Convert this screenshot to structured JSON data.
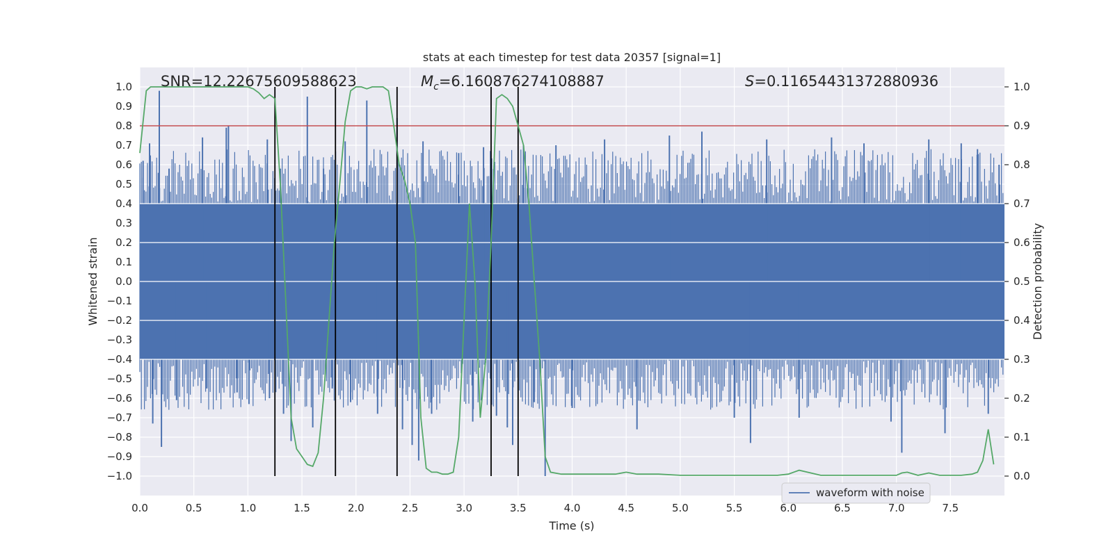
{
  "chart_data": {
    "type": "line",
    "title": "stats at each timestep for test data 20357 [signal=1]",
    "xlabel": "Time (s)",
    "ylabel": "Whitened strain",
    "y2label": "Detection probability",
    "xlim": [
      0.0,
      8.0
    ],
    "ylim": [
      -1.1,
      1.1
    ],
    "y2lim": [
      -0.05,
      1.05
    ],
    "xticks": [
      "0.0",
      "0.5",
      "1.0",
      "1.5",
      "2.0",
      "2.5",
      "3.0",
      "3.5",
      "4.0",
      "4.5",
      "5.0",
      "5.5",
      "6.0",
      "6.5",
      "7.0",
      "7.5"
    ],
    "yticks": [
      "1.0",
      "0.9",
      "0.8",
      "0.7",
      "0.6",
      "0.5",
      "0.4",
      "0.3",
      "0.2",
      "0.1",
      "0.0",
      "-0.1",
      "-0.2",
      "-0.3",
      "-0.4",
      "-0.5",
      "-0.6",
      "-0.7",
      "-0.8",
      "-0.9",
      "-1.0"
    ],
    "y2ticks": [
      "1.0",
      "0.9",
      "0.8",
      "0.7",
      "0.6",
      "0.5",
      "0.4",
      "0.3",
      "0.2",
      "0.1",
      "0.0"
    ],
    "grid": true,
    "legend": {
      "placement": "lower-right",
      "entries": [
        "waveform with noise"
      ]
    },
    "annotations": {
      "snr": "SNR=12.22675609588623",
      "mc_symbol": "M",
      "mc_sub": "c",
      "mc_value": "=6.160876274108887",
      "s_symbol": "S",
      "s_value": "=0.11654431372880936"
    },
    "threshold": {
      "axis": "right",
      "y": 0.9,
      "color": "#c44e52"
    },
    "vertical_markers": [
      1.25,
      1.81,
      2.38,
      3.25,
      3.5
    ],
    "series": [
      {
        "name": "waveform with noise",
        "axis": "left",
        "color": "#4c72b0",
        "band": 0.4,
        "peaks": [
          [
            0.03,
            0.62
          ],
          [
            0.06,
            -0.35
          ],
          [
            0.09,
            0.71
          ],
          [
            0.12,
            -0.73
          ],
          [
            0.18,
            0.98
          ],
          [
            0.2,
            -0.85
          ],
          [
            0.27,
            0.58
          ],
          [
            0.34,
            -0.61
          ],
          [
            0.58,
            0.74
          ],
          [
            0.62,
            -0.55
          ],
          [
            0.8,
            0.79
          ],
          [
            0.82,
            0.8
          ],
          [
            0.9,
            -0.57
          ],
          [
            1.01,
            -0.63
          ],
          [
            1.18,
            0.73
          ],
          [
            1.2,
            -0.6
          ],
          [
            1.3,
            0.58
          ],
          [
            1.33,
            -0.68
          ],
          [
            1.4,
            -0.82
          ],
          [
            1.55,
            0.95
          ],
          [
            1.6,
            -0.75
          ],
          [
            1.7,
            0.58
          ],
          [
            1.78,
            -0.55
          ],
          [
            1.9,
            0.72
          ],
          [
            1.95,
            -0.62
          ],
          [
            2.1,
            0.93
          ],
          [
            2.2,
            -0.68
          ],
          [
            2.38,
            0.84
          ],
          [
            2.43,
            -0.76
          ],
          [
            2.52,
            -0.84
          ],
          [
            2.58,
            -0.92
          ],
          [
            2.62,
            0.72
          ],
          [
            2.7,
            -0.68
          ],
          [
            2.95,
            0.66
          ],
          [
            3.08,
            -0.72
          ],
          [
            3.18,
            0.69
          ],
          [
            3.3,
            -0.69
          ],
          [
            3.4,
            -0.75
          ],
          [
            3.45,
            -0.84
          ],
          [
            3.55,
            0.7
          ],
          [
            3.65,
            -0.62
          ],
          [
            3.75,
            -1.0
          ],
          [
            3.85,
            0.7
          ],
          [
            4.0,
            -0.65
          ],
          [
            4.3,
            0.73
          ],
          [
            4.6,
            -0.76
          ],
          [
            4.9,
            0.75
          ],
          [
            5.2,
            0.77
          ],
          [
            5.5,
            -0.7
          ],
          [
            5.65,
            -0.83
          ],
          [
            5.8,
            0.73
          ],
          [
            6.1,
            -0.7
          ],
          [
            6.4,
            0.74
          ],
          [
            6.7,
            0.71
          ],
          [
            6.95,
            -0.72
          ],
          [
            7.05,
            -0.88
          ],
          [
            7.3,
            0.73
          ],
          [
            7.45,
            -0.78
          ],
          [
            7.6,
            0.71
          ],
          [
            7.75,
            0.68
          ],
          [
            7.85,
            -0.68
          ],
          [
            7.95,
            0.6
          ]
        ]
      },
      {
        "name": "detection probability",
        "axis": "right",
        "color": "#55a868",
        "x": [
          0.0,
          0.06,
          0.1,
          0.2,
          0.5,
          0.8,
          1.0,
          1.05,
          1.1,
          1.15,
          1.2,
          1.25,
          1.3,
          1.35,
          1.4,
          1.45,
          1.5,
          1.55,
          1.6,
          1.65,
          1.7,
          1.75,
          1.8,
          1.85,
          1.9,
          1.95,
          2.0,
          2.05,
          2.1,
          2.15,
          2.2,
          2.25,
          2.3,
          2.35,
          2.4,
          2.45,
          2.5,
          2.55,
          2.6,
          2.65,
          2.7,
          2.75,
          2.8,
          2.85,
          2.9,
          2.95,
          3.0,
          3.05,
          3.1,
          3.15,
          3.2,
          3.25,
          3.3,
          3.35,
          3.4,
          3.45,
          3.5,
          3.55,
          3.6,
          3.65,
          3.7,
          3.75,
          3.8,
          3.9,
          4.0,
          4.2,
          4.4,
          4.5,
          4.6,
          4.8,
          5.0,
          5.5,
          5.9,
          6.0,
          6.1,
          6.3,
          6.5,
          7.0,
          7.05,
          7.1,
          7.2,
          7.3,
          7.4,
          7.5,
          7.6,
          7.7,
          7.75,
          7.8,
          7.85,
          7.9
        ],
        "y": [
          0.83,
          0.99,
          1.0,
          1.0,
          1.0,
          1.0,
          1.0,
          0.995,
          0.985,
          0.97,
          0.98,
          0.97,
          0.75,
          0.45,
          0.15,
          0.07,
          0.05,
          0.03,
          0.025,
          0.06,
          0.2,
          0.4,
          0.6,
          0.75,
          0.91,
          0.99,
          1.0,
          1.0,
          0.995,
          1.0,
          1.0,
          1.0,
          0.99,
          0.9,
          0.8,
          0.76,
          0.7,
          0.6,
          0.15,
          0.02,
          0.01,
          0.01,
          0.005,
          0.005,
          0.01,
          0.1,
          0.4,
          0.7,
          0.5,
          0.15,
          0.3,
          0.6,
          0.97,
          0.98,
          0.97,
          0.95,
          0.9,
          0.85,
          0.7,
          0.5,
          0.3,
          0.05,
          0.01,
          0.005,
          0.005,
          0.005,
          0.005,
          0.01,
          0.005,
          0.005,
          0.002,
          0.002,
          0.002,
          0.005,
          0.015,
          0.002,
          0.002,
          0.002,
          0.008,
          0.01,
          0.002,
          0.008,
          0.002,
          0.002,
          0.002,
          0.005,
          0.01,
          0.04,
          0.12,
          0.03
        ]
      }
    ]
  }
}
